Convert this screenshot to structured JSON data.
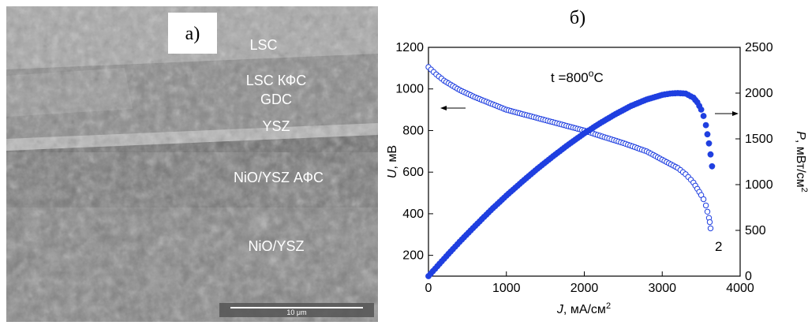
{
  "panel_a": {
    "label": "a)",
    "layers": [
      "LSC",
      "LSC КФС",
      "GDC",
      "YSZ",
      "NiO/YSZ АФС",
      "NiO/YSZ"
    ],
    "scale_bar": "10 μm"
  },
  "panel_b": {
    "label": "б)",
    "temperature": {
      "prefix": "t =800",
      "sup": "o",
      "suffix": "C"
    },
    "curve_label": "2"
  },
  "colors": {
    "series": "#1f3fe0",
    "axis": "#000000"
  },
  "chart_data": {
    "type": "scatter",
    "title": "б)",
    "xlabel": {
      "italic": "J",
      "rest": ", мА/см",
      "sup": "2"
    },
    "ylabel": {
      "italic": "U",
      "rest": ", мВ"
    },
    "y2label": {
      "italic": "P",
      "rest": ", мВт/см",
      "sup": "2"
    },
    "xlim": [
      0,
      4000
    ],
    "ylim": [
      100,
      1200
    ],
    "y2lim": [
      0,
      2500
    ],
    "xticks": [
      0,
      1000,
      2000,
      3000,
      4000
    ],
    "yticks": [
      200,
      400,
      600,
      800,
      1000,
      1200
    ],
    "y2ticks": [
      0,
      500,
      1000,
      1500,
      2000,
      2500
    ],
    "series": [
      {
        "name": "U (voltage)",
        "marker": "open-circle",
        "axis": "left",
        "x": [
          0,
          100,
          200,
          400,
          600,
          800,
          1000,
          1200,
          1500,
          1800,
          2000,
          2200,
          2500,
          2800,
          3000,
          3200,
          3300,
          3400,
          3450,
          3500,
          3530,
          3560,
          3580,
          3600,
          3610,
          3620
        ],
        "y": [
          1105,
          1070,
          1040,
          995,
          960,
          930,
          900,
          880,
          850,
          820,
          800,
          775,
          740,
          700,
          660,
          620,
          590,
          550,
          520,
          490,
          470,
          440,
          410,
          380,
          360,
          330
        ]
      },
      {
        "name": "P (power density)",
        "marker": "filled-circle",
        "axis": "right",
        "x": [
          0,
          200,
          400,
          600,
          800,
          1000,
          1200,
          1400,
          1600,
          1800,
          2000,
          2200,
          2400,
          2600,
          2800,
          3000,
          3100,
          3200,
          3300,
          3400,
          3450,
          3500,
          3530,
          3560,
          3580,
          3600,
          3620,
          3640
        ],
        "y": [
          0,
          190,
          375,
          550,
          720,
          880,
          1030,
          1175,
          1310,
          1440,
          1560,
          1670,
          1770,
          1860,
          1930,
          1980,
          1995,
          2000,
          1995,
          1950,
          1900,
          1820,
          1750,
          1650,
          1550,
          1450,
          1330,
          1200
        ]
      }
    ],
    "annotations": [
      "arrow-left to U axis",
      "arrow-right to P axis"
    ]
  }
}
